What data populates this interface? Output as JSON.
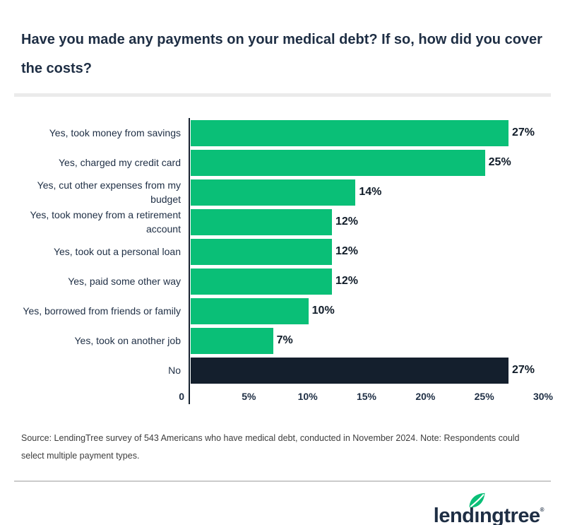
{
  "title": "Have you made any payments on your medical debt? If so, how did you cover the costs?",
  "colors": {
    "brand_green": "#0abf77",
    "brand_navy": "#141f2d",
    "text_navy": "#1e2e44",
    "divider_light": "#ebebeb",
    "divider_gray": "#cbcbcb"
  },
  "chart_data": {
    "type": "bar",
    "orientation": "horizontal",
    "title": "",
    "xlabel": "",
    "ylabel": "",
    "categories": [
      "Yes, took money from savings",
      "Yes, charged my credit card",
      "Yes, cut other expenses from my budget",
      "Yes, took money from a retirement account",
      "Yes, took out a personal loan",
      "Yes, paid some other way",
      "Yes, borrowed from friends or family",
      "Yes, took on another job",
      "No"
    ],
    "values": [
      27,
      25,
      14,
      12,
      12,
      12,
      10,
      7,
      27
    ],
    "data_labels": [
      "27%",
      "25%",
      "14%",
      "12%",
      "12%",
      "12%",
      "10%",
      "7%",
      "27%"
    ],
    "bar_colors": [
      "#0abf77",
      "#0abf77",
      "#0abf77",
      "#0abf77",
      "#0abf77",
      "#0abf77",
      "#0abf77",
      "#0abf77",
      "#141f2d"
    ],
    "xlim": [
      0,
      30
    ],
    "x_ticks": [
      {
        "label": "0",
        "value": 0
      },
      {
        "label": "5%",
        "value": 5
      },
      {
        "label": "10%",
        "value": 10
      },
      {
        "label": "15%",
        "value": 15
      },
      {
        "label": "20%",
        "value": 20
      },
      {
        "label": "25%",
        "value": 25
      },
      {
        "label": "30%",
        "value": 30
      }
    ],
    "grid": false,
    "legend": false
  },
  "source_note": "Source: LendingTree survey of 543 Americans who have medical debt, conducted in November 2024. Note: Respondents could select multiple payment types.",
  "logo": {
    "prefix": "lend",
    "dotless_i": "ı",
    "suffix": "ngtree",
    "registered": "®",
    "leaf_icon": "leaf-icon"
  }
}
